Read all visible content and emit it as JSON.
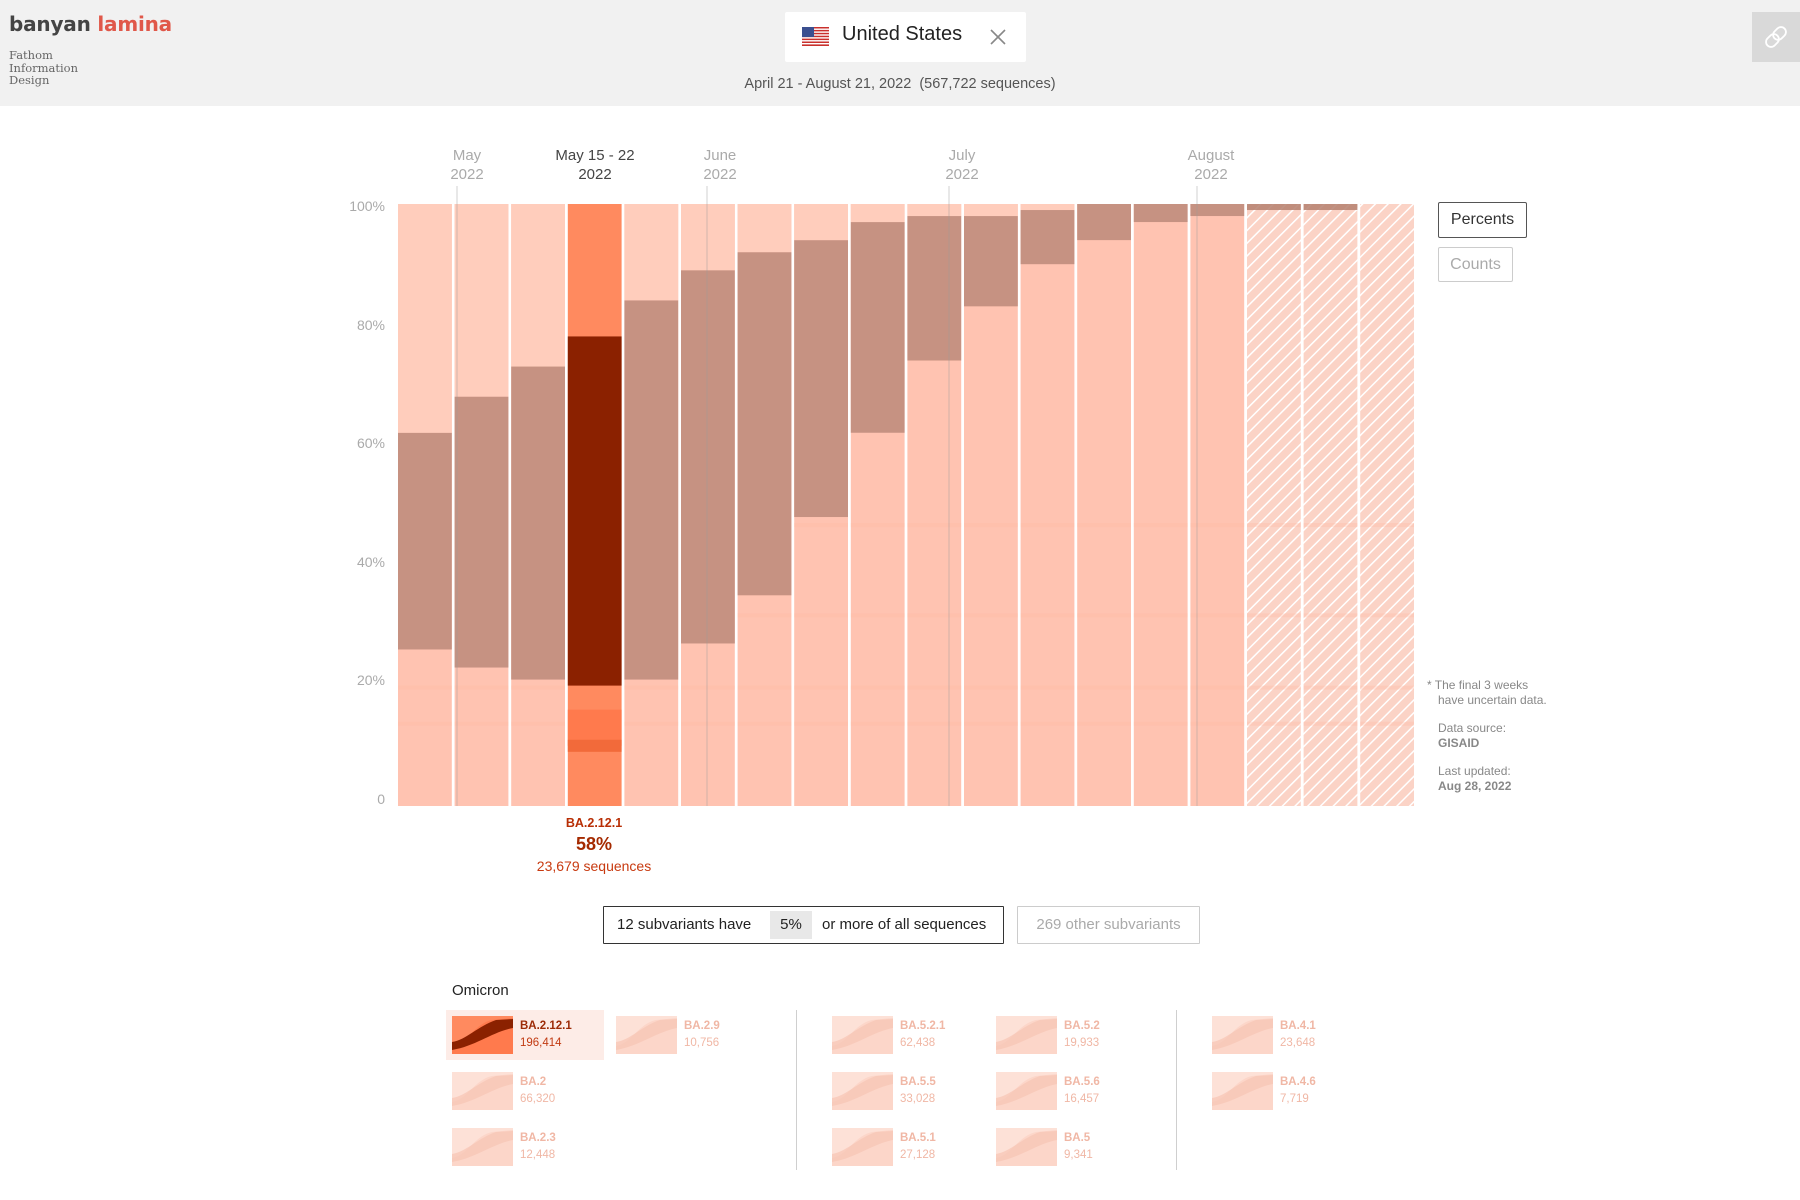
{
  "header": {
    "brand_part1": "banyan",
    "brand_part2": "lamina",
    "credit_lines": [
      "Fathom",
      "Information",
      "Design"
    ],
    "country": "United States",
    "flag_icon": "us-flag-icon",
    "date_range": "April 21 - August 21, 2022",
    "sequence_total": "(567,722 sequences)",
    "link_icon": "link-icon"
  },
  "months": [
    {
      "label": "May",
      "year": "2022",
      "selected": false
    },
    {
      "label": "May 15 - 22",
      "year": "2022",
      "selected": true
    },
    {
      "label": "June",
      "year": "2022",
      "selected": false
    },
    {
      "label": "July",
      "year": "2022",
      "selected": false
    },
    {
      "label": "August",
      "year": "2022",
      "selected": false
    }
  ],
  "controls": {
    "percents": "Percents",
    "counts": "Counts",
    "active_mode": "percents"
  },
  "notes": {
    "uncertain": "* The final 3 weeks have uncertain data.",
    "source_label": "Data source:",
    "source": "GISAID",
    "updated_label": "Last updated:",
    "updated": "Aug 28, 2022"
  },
  "selection": {
    "name": "BA.2.12.1",
    "percent": "58%",
    "sequences": "23,679 sequences"
  },
  "filter": {
    "prefix": "12 subvariants have",
    "threshold": "5%",
    "suffix": "or more of all sequences",
    "other": "269 other subvariants"
  },
  "legend": {
    "group": "Omicron",
    "items": [
      {
        "name": "BA.2.12.1",
        "count": "196,414",
        "selected": true
      },
      {
        "name": "BA.2.9",
        "count": "10,756",
        "selected": false
      },
      {
        "name": "BA.2",
        "count": "66,320",
        "selected": false
      },
      {
        "name": "BA.2.3",
        "count": "12,448",
        "selected": false
      },
      {
        "name": "BA.5.2.1",
        "count": "62,438",
        "selected": false
      },
      {
        "name": "BA.5.2",
        "count": "19,933",
        "selected": false
      },
      {
        "name": "BA.5.5",
        "count": "33,028",
        "selected": false
      },
      {
        "name": "BA.5.6",
        "count": "16,457",
        "selected": false
      },
      {
        "name": "BA.5.1",
        "count": "27,128",
        "selected": false
      },
      {
        "name": "BA.5",
        "count": "9,341",
        "selected": false
      },
      {
        "name": "BA.4.1",
        "count": "23,648",
        "selected": false
      },
      {
        "name": "BA.4.6",
        "count": "7,719",
        "selected": false
      }
    ]
  },
  "colors": {
    "selected_dark": "#8b2100",
    "selected_light": "#ff8a5f",
    "highlight_band": "#c69282",
    "base": "#ffc3b1",
    "accent_brand": "#e0584a"
  },
  "chart_data": {
    "type": "bar",
    "stacked": true,
    "title": "",
    "ylabel": "",
    "yticks": [
      "0",
      "20%",
      "40%",
      "60%",
      "80%",
      "100%"
    ],
    "ylim": [
      0,
      100
    ],
    "weeks": 18,
    "selected_week_index": 3,
    "selected_series": "BA.2.12.1",
    "uncertain_last_weeks": 3,
    "highlight_band_percent": [
      {
        "bottom": 26,
        "top": 62
      },
      {
        "bottom": 23,
        "top": 68
      },
      {
        "bottom": 21,
        "top": 73
      },
      {
        "bottom": 20,
        "top": 78
      },
      {
        "bottom": 21,
        "top": 84
      },
      {
        "bottom": 27,
        "top": 89
      },
      {
        "bottom": 35,
        "top": 92
      },
      {
        "bottom": 48,
        "top": 94
      },
      {
        "bottom": 62,
        "top": 97
      },
      {
        "bottom": 74,
        "top": 98
      },
      {
        "bottom": 83,
        "top": 98
      },
      {
        "bottom": 90,
        "top": 99
      },
      {
        "bottom": 94,
        "top": 100
      },
      {
        "bottom": 97,
        "top": 100
      },
      {
        "bottom": 98,
        "top": 100
      },
      {
        "bottom": 99,
        "top": 100
      },
      {
        "bottom": 99,
        "top": 100
      },
      {
        "bottom": 100,
        "top": 100
      }
    ]
  }
}
